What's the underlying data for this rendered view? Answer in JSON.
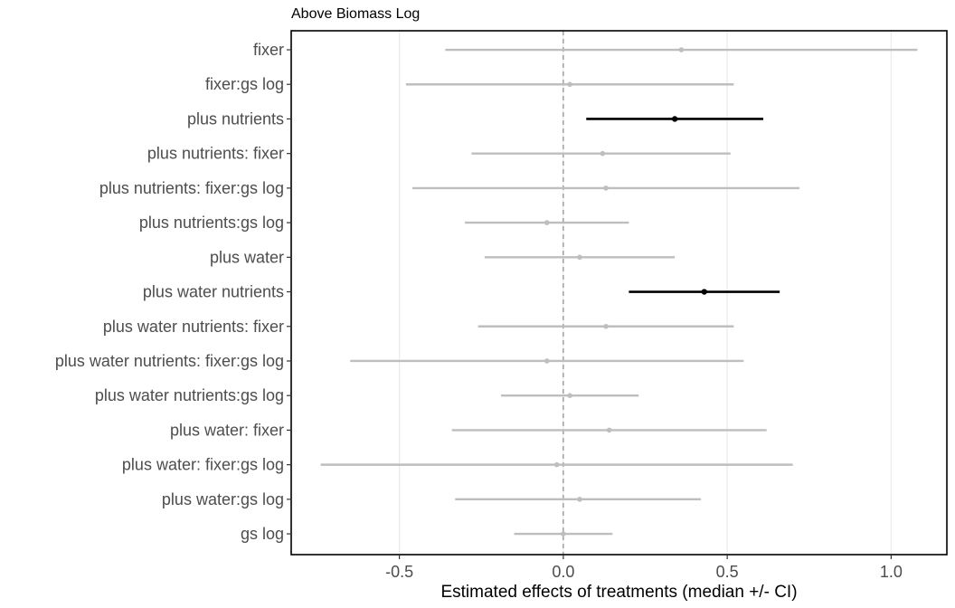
{
  "chart_data": {
    "type": "scatter",
    "title": "Above Biomass Log",
    "xlabel": "Estimated effects of treatments (median +/- CI)",
    "ylabel": "",
    "xlim": [
      -0.83,
      1.17
    ],
    "xticks": [
      -0.5,
      0.0,
      0.5,
      1.0
    ],
    "xtick_labels": [
      "-0.5",
      "0.0",
      "0.5",
      "1.0"
    ],
    "grid": "vertical major gridlines",
    "reference_line": 0,
    "colors": {
      "significant": "#000000",
      "not_significant": "#bebebe",
      "gridline": "#ebebeb",
      "reference_line": "#808080",
      "panel_border": "#000000"
    },
    "points": [
      {
        "label": "fixer",
        "median": 0.36,
        "lower": -0.36,
        "upper": 1.08,
        "significant": false
      },
      {
        "label": "fixer:gs log",
        "median": 0.02,
        "lower": -0.48,
        "upper": 0.52,
        "significant": false
      },
      {
        "label": "plus nutrients",
        "median": 0.34,
        "lower": 0.07,
        "upper": 0.61,
        "significant": true
      },
      {
        "label": "plus nutrients: fixer",
        "median": 0.12,
        "lower": -0.28,
        "upper": 0.51,
        "significant": false
      },
      {
        "label": "plus nutrients: fixer:gs log",
        "median": 0.13,
        "lower": -0.46,
        "upper": 0.72,
        "significant": false
      },
      {
        "label": "plus nutrients:gs log",
        "median": -0.05,
        "lower": -0.3,
        "upper": 0.2,
        "significant": false
      },
      {
        "label": "plus water",
        "median": 0.05,
        "lower": -0.24,
        "upper": 0.34,
        "significant": false
      },
      {
        "label": "plus water nutrients",
        "median": 0.43,
        "lower": 0.2,
        "upper": 0.66,
        "significant": true
      },
      {
        "label": "plus water nutrients: fixer",
        "median": 0.13,
        "lower": -0.26,
        "upper": 0.52,
        "significant": false
      },
      {
        "label": "plus water nutrients: fixer:gs log",
        "median": -0.05,
        "lower": -0.65,
        "upper": 0.55,
        "significant": false
      },
      {
        "label": "plus water nutrients:gs log",
        "median": 0.02,
        "lower": -0.19,
        "upper": 0.23,
        "significant": false
      },
      {
        "label": "plus water: fixer",
        "median": 0.14,
        "lower": -0.34,
        "upper": 0.62,
        "significant": false
      },
      {
        "label": "plus water: fixer:gs log",
        "median": -0.02,
        "lower": -0.74,
        "upper": 0.7,
        "significant": false
      },
      {
        "label": "plus water:gs log",
        "median": 0.05,
        "lower": -0.33,
        "upper": 0.42,
        "significant": false
      },
      {
        "label": "gs log",
        "median": 0.0,
        "lower": -0.15,
        "upper": 0.15,
        "significant": false
      }
    ]
  }
}
